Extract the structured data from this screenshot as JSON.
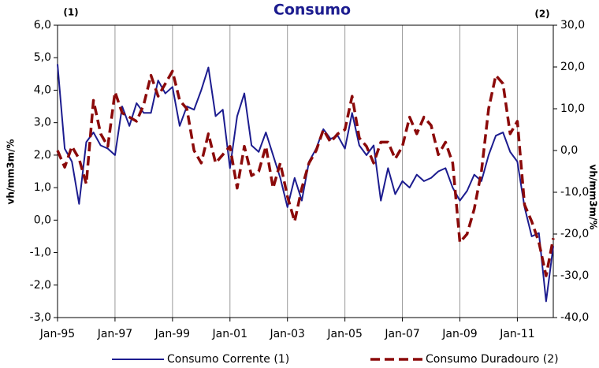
{
  "chart_data": {
    "type": "line",
    "title": "Consumo",
    "annotations": [
      "(1)",
      "(2)"
    ],
    "y_label": "vh/mm3m/%",
    "y2_label": "vh/mm3m/%",
    "x": [
      1995,
      1995.25,
      1995.5,
      1995.75,
      1996,
      1996.25,
      1996.5,
      1996.75,
      1997,
      1997.25,
      1997.5,
      1997.75,
      1998,
      1998.25,
      1998.5,
      1998.75,
      1999,
      1999.25,
      1999.5,
      1999.75,
      2000,
      2000.25,
      2000.5,
      2000.75,
      2001,
      2001.25,
      2001.5,
      2001.75,
      2002,
      2002.25,
      2002.5,
      2002.75,
      2003,
      2003.25,
      2003.5,
      2003.75,
      2004,
      2004.25,
      2004.5,
      2004.75,
      2005,
      2005.25,
      2005.5,
      2005.75,
      2006,
      2006.25,
      2006.5,
      2006.75,
      2007,
      2007.25,
      2007.5,
      2007.75,
      2008,
      2008.25,
      2008.5,
      2008.75,
      2009,
      2009.25,
      2009.5,
      2009.75,
      2010,
      2010.25,
      2010.5,
      2010.75,
      2011,
      2011.25,
      2011.5,
      2011.75,
      2012,
      2012.25
    ],
    "series": [
      {
        "name": "Consumo Corrente (1)",
        "color": "#1c1c8f",
        "dash": false,
        "axis": "y",
        "values": [
          4.8,
          2.2,
          1.8,
          0.5,
          2.4,
          2.7,
          2.3,
          2.2,
          2.0,
          3.5,
          2.9,
          3.6,
          3.3,
          3.3,
          4.3,
          3.9,
          4.1,
          2.9,
          3.5,
          3.4,
          4.0,
          4.7,
          3.2,
          3.4,
          1.6,
          3.2,
          3.9,
          2.3,
          2.1,
          2.7,
          2.0,
          1.3,
          0.4,
          1.3,
          0.6,
          1.8,
          2.2,
          2.8,
          2.5,
          2.6,
          2.2,
          3.3,
          2.3,
          2.0,
          2.3,
          0.6,
          1.6,
          0.8,
          1.2,
          1.0,
          1.4,
          1.2,
          1.3,
          1.5,
          1.6,
          1.0,
          0.6,
          0.9,
          1.4,
          1.2,
          2.0,
          2.6,
          2.7,
          2.1,
          1.8,
          0.4,
          -0.5,
          -0.4,
          -2.5,
          -0.8
        ]
      },
      {
        "name": "Consumo Duradouro (2)",
        "color": "#8b0a0a",
        "dash": true,
        "axis": "y2",
        "values": [
          0,
          -4,
          1,
          -2,
          -8,
          12,
          4,
          1,
          14,
          9,
          8,
          7,
          11,
          18,
          13,
          16,
          19,
          12,
          10,
          0,
          -3,
          4,
          -3,
          -1,
          1,
          -9,
          1,
          -6,
          -5,
          1,
          -9,
          -3,
          -11,
          -17,
          -9,
          -3,
          0,
          5,
          2,
          4,
          5,
          13,
          3,
          1,
          -3,
          2,
          2,
          -2,
          1,
          8,
          4,
          8,
          6,
          -1,
          2,
          -3,
          -22,
          -20,
          -14,
          -5,
          10,
          18,
          16,
          4,
          7,
          -13,
          -17,
          -22,
          -30,
          -21
        ]
      }
    ],
    "xlim": [
      1995,
      2012.25
    ],
    "xticks": [
      {
        "value": 1995,
        "label": "Jan-95"
      },
      {
        "value": 1997,
        "label": "Jan-97"
      },
      {
        "value": 1999,
        "label": "Jan-99"
      },
      {
        "value": 2001,
        "label": "Jan-01"
      },
      {
        "value": 2003,
        "label": "Jan-03"
      },
      {
        "value": 2005,
        "label": "Jan-05"
      },
      {
        "value": 2007,
        "label": "Jan-07"
      },
      {
        "value": 2009,
        "label": "Jan-09"
      },
      {
        "value": 2011,
        "label": "Jan-11"
      }
    ],
    "ylim": [
      -3,
      6
    ],
    "yticks": [
      {
        "value": -3,
        "label": "-3,0"
      },
      {
        "value": -2,
        "label": "-2,0"
      },
      {
        "value": -1,
        "label": "-1,0"
      },
      {
        "value": 0,
        "label": "0,0"
      },
      {
        "value": 1,
        "label": "1,0"
      },
      {
        "value": 2,
        "label": "2,0"
      },
      {
        "value": 3,
        "label": "3,0"
      },
      {
        "value": 4,
        "label": "4,0"
      },
      {
        "value": 5,
        "label": "5,0"
      },
      {
        "value": 6,
        "label": "6,0"
      }
    ],
    "y2lim": [
      -40,
      30
    ],
    "y2ticks": [
      {
        "value": -40,
        "label": "-40,0"
      },
      {
        "value": -30,
        "label": "-30,0"
      },
      {
        "value": -20,
        "label": "-20,0"
      },
      {
        "value": -10,
        "label": "-10,0"
      },
      {
        "value": 0,
        "label": "0,0"
      },
      {
        "value": 10,
        "label": "10,0"
      },
      {
        "value": 20,
        "label": "20,0"
      },
      {
        "value": 30,
        "label": "30,0"
      }
    ],
    "grid": "x",
    "legend": "bottom"
  }
}
